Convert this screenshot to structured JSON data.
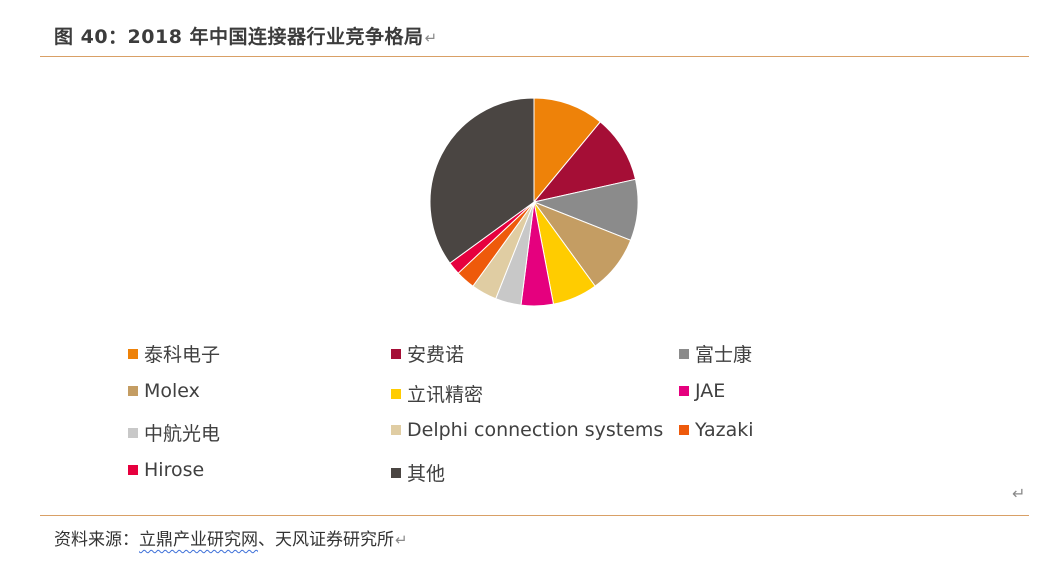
{
  "figure": {
    "title": "图 40：2018 年中国连接器行业竞争格局",
    "return_mark": "↵"
  },
  "chart_data": {
    "type": "pie",
    "start_angle_deg": 0,
    "direction": "clockwise",
    "slices": [
      {
        "label": "泰科电子",
        "value": 11.0,
        "color": "#EE8209"
      },
      {
        "label": "安费诺",
        "value": 10.5,
        "color": "#A50E36"
      },
      {
        "label": "富士康",
        "value": 9.5,
        "color": "#8B8B8B"
      },
      {
        "label": "Molex",
        "value": 9.0,
        "color": "#C49D63"
      },
      {
        "label": "立讯精密",
        "value": 7.0,
        "color": "#FFCC00"
      },
      {
        "label": "JAE",
        "value": 5.0,
        "color": "#E5007E"
      },
      {
        "label": "中航光电",
        "value": 4.0,
        "color": "#C8C8C8"
      },
      {
        "label": "Delphi connection systems",
        "value": 4.0,
        "color": "#E0CDA3"
      },
      {
        "label": "Yazaki",
        "value": 3.0,
        "color": "#EE5A0B"
      },
      {
        "label": "Hirose",
        "value": 2.0,
        "color": "#E6003E"
      },
      {
        "label": "其他",
        "value": 35.0,
        "color": "#4A4542"
      }
    ],
    "legend_position": "bottom"
  },
  "footer": {
    "paragraph_mark": "↵",
    "source_prefix": "资料来源：",
    "source_link": "立鼎产业研究网",
    "source_rest": "、天风证券研究所",
    "return_mark": "↵"
  }
}
